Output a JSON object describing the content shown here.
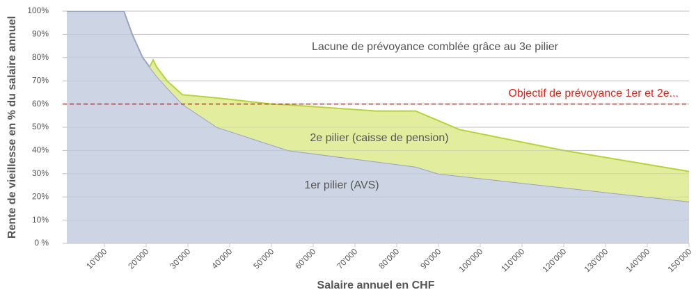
{
  "chart_data": {
    "type": "area",
    "x": [
      1000,
      14667,
      16667,
      19167,
      20833,
      21667,
      22500,
      25000,
      28667,
      37000,
      40000,
      50000,
      54167,
      75000,
      84500,
      90000,
      95000,
      120000,
      150000
    ],
    "series": [
      {
        "name": "1er pilier (AVS)",
        "color": "#cdd5e4",
        "line_color": "#9aa3bb",
        "values": [
          100,
          100,
          90,
          80,
          76,
          74,
          72,
          67,
          60,
          50,
          48.3,
          42.4,
          40,
          35.2,
          33,
          30,
          29,
          24,
          18
        ]
      },
      {
        "name": "2e pilier (caisse de pension)",
        "color": "#e2ed9e",
        "line_color": "#b5d33a",
        "values": [
          null,
          null,
          null,
          null,
          0,
          5,
          4,
          3,
          4,
          12.6,
          13.7,
          17.6,
          19.6,
          21.8,
          24,
          22.8,
          20,
          16,
          13
        ]
      }
    ],
    "annotation": "Lacune de prévoyance comblée grâce au 3e pilier",
    "target": {
      "value": 60,
      "label": "Objectif de prévoyance 1er et 2e...",
      "color": "#e0241b"
    },
    "xlabel": "Salaire annuel en CHF",
    "ylabel": "Rente de vieillesse en % du salaire annuel",
    "xlim": [
      0,
      150000
    ],
    "ylim": [
      0,
      100
    ],
    "xticks": [
      {
        "value": 10000,
        "label": "10'000"
      },
      {
        "value": 20000,
        "label": "20'000"
      },
      {
        "value": 30000,
        "label": "30'000"
      },
      {
        "value": 40000,
        "label": "40'000"
      },
      {
        "value": 50000,
        "label": "50'000"
      },
      {
        "value": 60000,
        "label": "60'000"
      },
      {
        "value": 70000,
        "label": "70'000"
      },
      {
        "value": 80000,
        "label": "80'000"
      },
      {
        "value": 90000,
        "label": "90'000"
      },
      {
        "value": 100000,
        "label": "100'000"
      },
      {
        "value": 110000,
        "label": "110'000"
      },
      {
        "value": 120000,
        "label": "120'000"
      },
      {
        "value": 130000,
        "label": "130'000"
      },
      {
        "value": 140000,
        "label": "140'000"
      },
      {
        "value": 150000,
        "label": "150'000"
      }
    ],
    "yticks": [
      {
        "value": 0,
        "label": "0 %"
      },
      {
        "value": 10,
        "label": "10%"
      },
      {
        "value": 20,
        "label": "20%"
      },
      {
        "value": 30,
        "label": "30%"
      },
      {
        "value": 40,
        "label": "40%"
      },
      {
        "value": 50,
        "label": "50%"
      },
      {
        "value": 60,
        "label": "60%"
      },
      {
        "value": 70,
        "label": "70%"
      },
      {
        "value": 80,
        "label": "80%"
      },
      {
        "value": 90,
        "label": "90%"
      },
      {
        "value": 100,
        "label": "100%"
      }
    ],
    "grid": true
  }
}
